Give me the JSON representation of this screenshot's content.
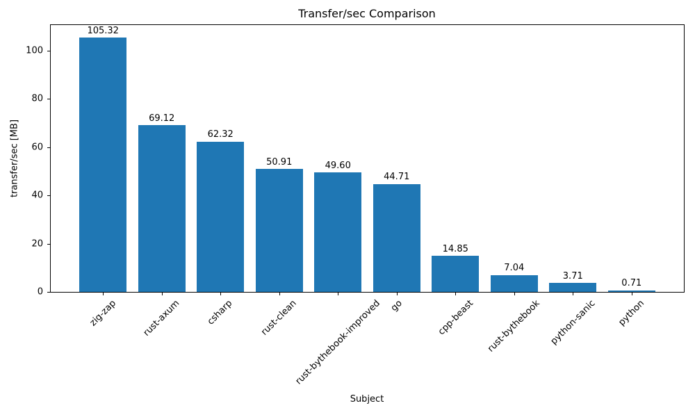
{
  "chart_data": {
    "type": "bar",
    "title": "Transfer/sec Comparison",
    "xlabel": "Subject",
    "ylabel": "transfer/sec [MB]",
    "categories": [
      "zig-zap",
      "rust-axum",
      "csharp",
      "rust-clean",
      "rust-bythebook-improved",
      "go",
      "cpp-beast",
      "rust-bythebook",
      "python-sanic",
      "python"
    ],
    "values": [
      105.32,
      69.12,
      62.32,
      50.91,
      49.6,
      44.71,
      14.85,
      7.04,
      3.71,
      0.71
    ],
    "value_labels": [
      "105.32",
      "69.12",
      "62.32",
      "50.91",
      "49.60",
      "44.71",
      "14.85",
      "7.04",
      "3.71",
      "0.71"
    ],
    "yticks": [
      0,
      20,
      40,
      60,
      80,
      100
    ],
    "ylim": [
      0,
      110.6
    ],
    "bar_color": "#1f77b4",
    "bar_width_fraction": 0.8,
    "x_tick_rotation_deg": 45,
    "grid": false,
    "legend": null
  }
}
